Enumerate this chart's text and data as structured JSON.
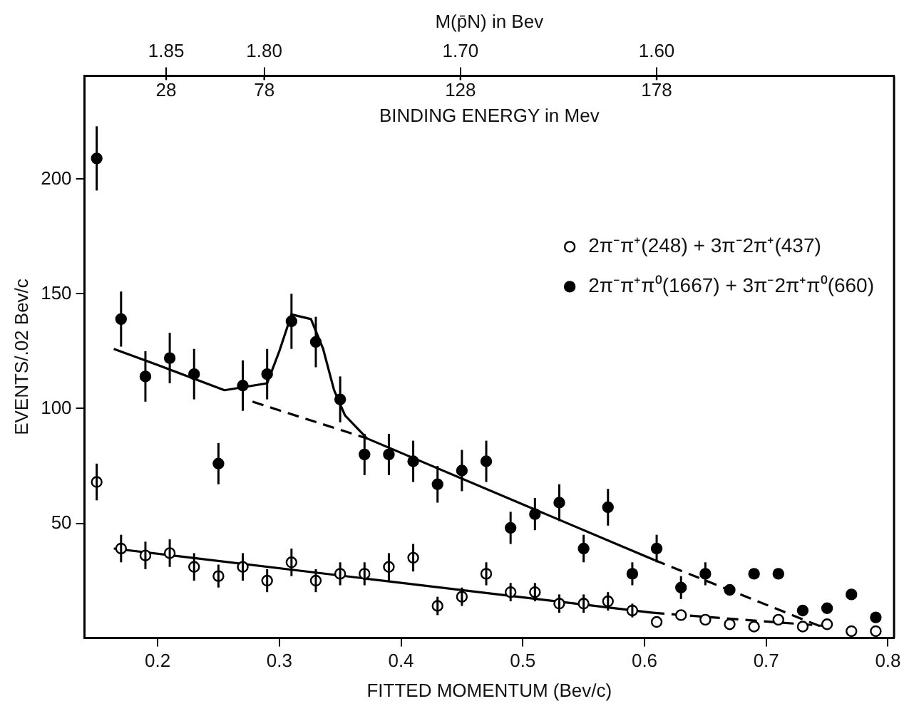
{
  "chart_data": {
    "type": "scatter",
    "xlabel": "FITTED MOMENTUM (Bev/c)",
    "ylabel": "EVENTS/.02 Bev/c",
    "x2label": "M(p̄N) in Bev",
    "xlim": [
      0.14,
      0.805
    ],
    "xticks": [
      0.2,
      0.3,
      0.4,
      0.5,
      0.6,
      0.7,
      0.8
    ],
    "ylim": [
      0,
      245
    ],
    "yticks": [
      50,
      100,
      150,
      200
    ],
    "x2lim": [
      1.8916,
      1.479
    ],
    "x2ticks": [
      {
        "value": 1.85,
        "label": "1.85"
      },
      {
        "value": 1.8,
        "label": "1.80"
      },
      {
        "value": 1.7,
        "label": "1.70"
      },
      {
        "value": 1.6,
        "label": "1.60"
      }
    ],
    "annotations": [
      "BINDING ENERGY in Mev",
      "28",
      "78",
      "128",
      "178"
    ],
    "grid": false,
    "legend": "top right",
    "x": [
      0.15,
      0.17,
      0.19,
      0.21,
      0.23,
      0.25,
      0.27,
      0.29,
      0.31,
      0.33,
      0.35,
      0.37,
      0.39,
      0.41,
      0.43,
      0.45,
      0.47,
      0.49,
      0.51,
      0.53,
      0.55,
      0.57,
      0.59,
      0.61,
      0.63,
      0.65,
      0.67,
      0.69,
      0.71,
      0.73,
      0.75,
      0.77,
      0.79
    ],
    "series": [
      {
        "name": "2π⁻π⁺(248) + 3π⁻2π⁺(437)",
        "marker": "circle",
        "color": "#ffffff",
        "values": [
          68,
          39,
          36,
          37,
          31,
          27,
          31,
          25,
          33,
          25,
          28,
          28,
          31,
          35,
          14,
          18,
          28,
          20,
          20,
          15,
          15,
          16,
          12,
          7,
          10,
          8,
          6,
          5,
          8,
          5,
          6,
          3,
          3
        ],
        "errors": [
          8,
          6,
          6,
          6,
          6,
          5,
          6,
          5,
          6,
          5,
          5,
          5,
          6,
          6,
          4,
          4,
          5,
          4,
          4,
          4,
          4,
          4,
          3,
          null,
          null,
          null,
          null,
          null,
          null,
          null,
          null,
          null,
          null
        ]
      },
      {
        "name": "2π⁻π⁺π⁰(1667) + 3π⁻2π⁺π⁰(660)",
        "marker": "circle",
        "color": "#000000",
        "values": [
          209,
          139,
          114,
          122,
          115,
          76,
          110,
          115,
          138,
          129,
          104,
          80,
          80,
          77,
          67,
          73,
          77,
          48,
          54,
          59,
          39,
          57,
          28,
          39,
          22,
          28,
          21,
          28,
          28,
          12,
          13,
          19,
          9
        ],
        "errors": [
          14,
          12,
          11,
          11,
          11,
          9,
          11,
          11,
          12,
          11,
          10,
          9,
          9,
          9,
          8,
          9,
          9,
          7,
          7,
          8,
          6,
          8,
          5,
          6,
          5,
          5,
          null,
          null,
          null,
          null,
          null,
          null,
          null
        ]
      },
      {
        "type": "line",
        "color": "#000000",
        "line_style": "solid",
        "x": [
          0.164,
          0.2,
          0.255,
          0.29,
          0.3,
          0.31,
          0.326,
          0.336,
          0.345,
          0.354,
          0.372,
          0.608
        ],
        "values": [
          126,
          119,
          108,
          111,
          125,
          141,
          139,
          126,
          108,
          97,
          87,
          34
        ]
      },
      {
        "type": "line",
        "color": "#000000",
        "line_style": "dashed",
        "x": [
          0.608,
          0.745
        ],
        "values": [
          34,
          5
        ]
      },
      {
        "type": "line",
        "color": "#000000",
        "line_style": "dashed",
        "x": [
          0.278,
          0.372
        ],
        "values": [
          103,
          87
        ]
      },
      {
        "type": "line",
        "color": "#000000",
        "line_style": "solid",
        "x": [
          0.164,
          0.607
        ],
        "values": [
          39,
          11
        ]
      },
      {
        "type": "line",
        "color": "#000000",
        "line_style": "dashed",
        "x": [
          0.607,
          0.755
        ],
        "values": [
          11,
          5
        ]
      }
    ]
  }
}
